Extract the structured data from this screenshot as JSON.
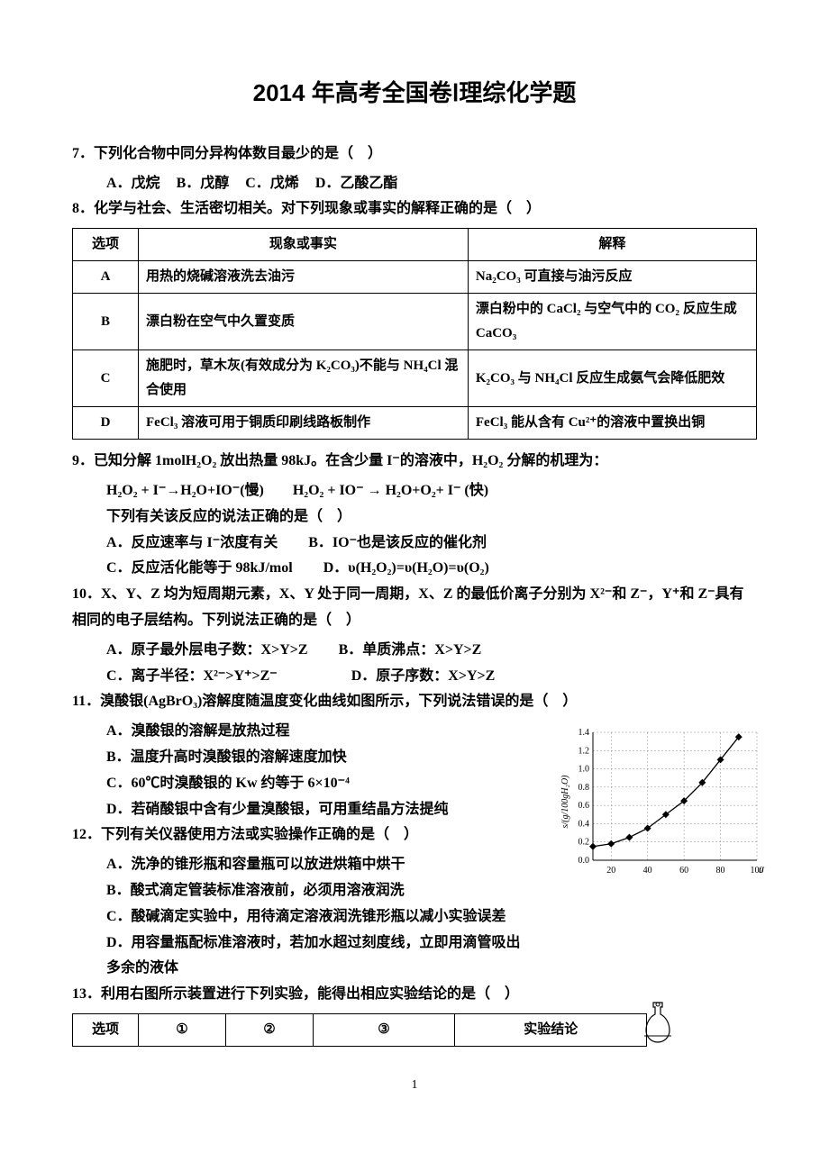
{
  "title": "2014 年高考全国卷Ⅰ理综化学题",
  "q7": {
    "text": "7．下列化合物中同分异构体数目最少的是（　）",
    "A": "A．戊烷",
    "B": "B．戊醇",
    "C": "C．戊烯",
    "D": "D．乙酸乙酯"
  },
  "q8": {
    "text": "8．化学与社会、生活密切相关。对下列现象或事实的解释正确的是（　）",
    "headers": [
      "选项",
      "现象或事实",
      "解释"
    ],
    "rows": [
      [
        "A",
        "用热的烧碱溶液洗去油污",
        "Na₂CO₃ 可直接与油污反应"
      ],
      [
        "B",
        "漂白粉在空气中久置变质",
        "漂白粉中的 CaCl₂ 与空气中的 CO₂ 反应生成 CaCO₃"
      ],
      [
        "C",
        "施肥时，草木灰(有效成分为 K₂CO₃)不能与 NH₄Cl 混合使用",
        "K₂CO₃ 与 NH₄Cl 反应生成氨气会降低肥效"
      ],
      [
        "D",
        "FeCl₃ 溶液可用于铜质印刷线路板制作",
        "FeCl₃ 能从含有 Cu²⁺的溶液中置换出铜"
      ]
    ]
  },
  "q9": {
    "text": "9．已知分解 1molH₂O₂ 放出热量 98kJ。在含少量 I⁻的溶液中，H₂O₂ 分解的机理为：",
    "mech": "H₂O₂ + I⁻→H₂O+IO⁻(慢)　　H₂O₂ + IO⁻ → H₂O+O₂+ I⁻ (快)",
    "sub": "下列有关该反应的说法正确的是（　）",
    "A": "A．反应速率与 I⁻浓度有关",
    "B": "B．IO⁻也是该反应的催化剂",
    "C": "C．反应活化能等于 98kJ/mol",
    "D": "D．υ(H₂O₂)=υ(H₂O)=υ(O₂)"
  },
  "q10": {
    "text": "10．X、Y、Z 均为短周期元素，X、Y 处于同一周期，X、Z 的最低价离子分别为 X²⁻和 Z⁻，Y⁺和 Z⁻具有相同的电子层结构。下列说法正确的是（　）",
    "A": "A．原子最外层电子数：X>Y>Z",
    "B": "B．单质沸点：X>Y>Z",
    "C": "C．离子半径：X²⁻>Y⁺>Z⁻",
    "D": "D．原子序数：X>Y>Z"
  },
  "q11": {
    "text": "11．溴酸银(AgBrO₃)溶解度随温度变化曲线如图所示，下列说法错误的是（　）",
    "A": "A．溴酸银的溶解是放热过程",
    "B": "B．温度升高时溴酸银的溶解速度加快",
    "C": "C．60℃时溴酸银的 Kw 约等于 6×10⁻⁴",
    "D": "D．若硝酸银中含有少量溴酸银，可用重结晶方法提纯",
    "chart": {
      "type": "line",
      "xlabel": "t/℃",
      "ylabel": "s/(g/100gH₂O)",
      "xlim": [
        10,
        100
      ],
      "ylim": [
        0.0,
        1.4
      ],
      "xticks": [
        20,
        40,
        60,
        80,
        100
      ],
      "yticks": [
        0.0,
        0.2,
        0.4,
        0.6,
        0.8,
        1.0,
        1.2,
        1.4
      ],
      "points_x": [
        10,
        20,
        30,
        40,
        50,
        60,
        70,
        80,
        90
      ],
      "points_y": [
        0.15,
        0.18,
        0.25,
        0.35,
        0.5,
        0.65,
        0.85,
        1.1,
        1.35
      ],
      "line_color": "#000000",
      "marker": "diamond",
      "marker_size": 4,
      "grid_color": "#888888",
      "grid_dash": "2,2",
      "background": "#ffffff",
      "label_fontsize": 10
    }
  },
  "q12": {
    "text": "12．下列有关仪器使用方法或实验操作正确的是（　）",
    "A": "A．洗净的锥形瓶和容量瓶可以放进烘箱中烘干",
    "B": "B．酸式滴定管装标准溶液前，必须用溶液润洗",
    "C": "C．酸碱滴定实验中，用待滴定溶液润洗锥形瓶以减小实验误差",
    "D": "D．用容量瓶配标准溶液时，若加水超过刻度线，立即用滴管吸出多余的液体"
  },
  "q13": {
    "text": "13．利用右图所示装置进行下列实验，能得出相应实验结论的是（　）",
    "headers": [
      "选项",
      "①",
      "②",
      "③",
      "实验结论"
    ]
  },
  "page": "1"
}
